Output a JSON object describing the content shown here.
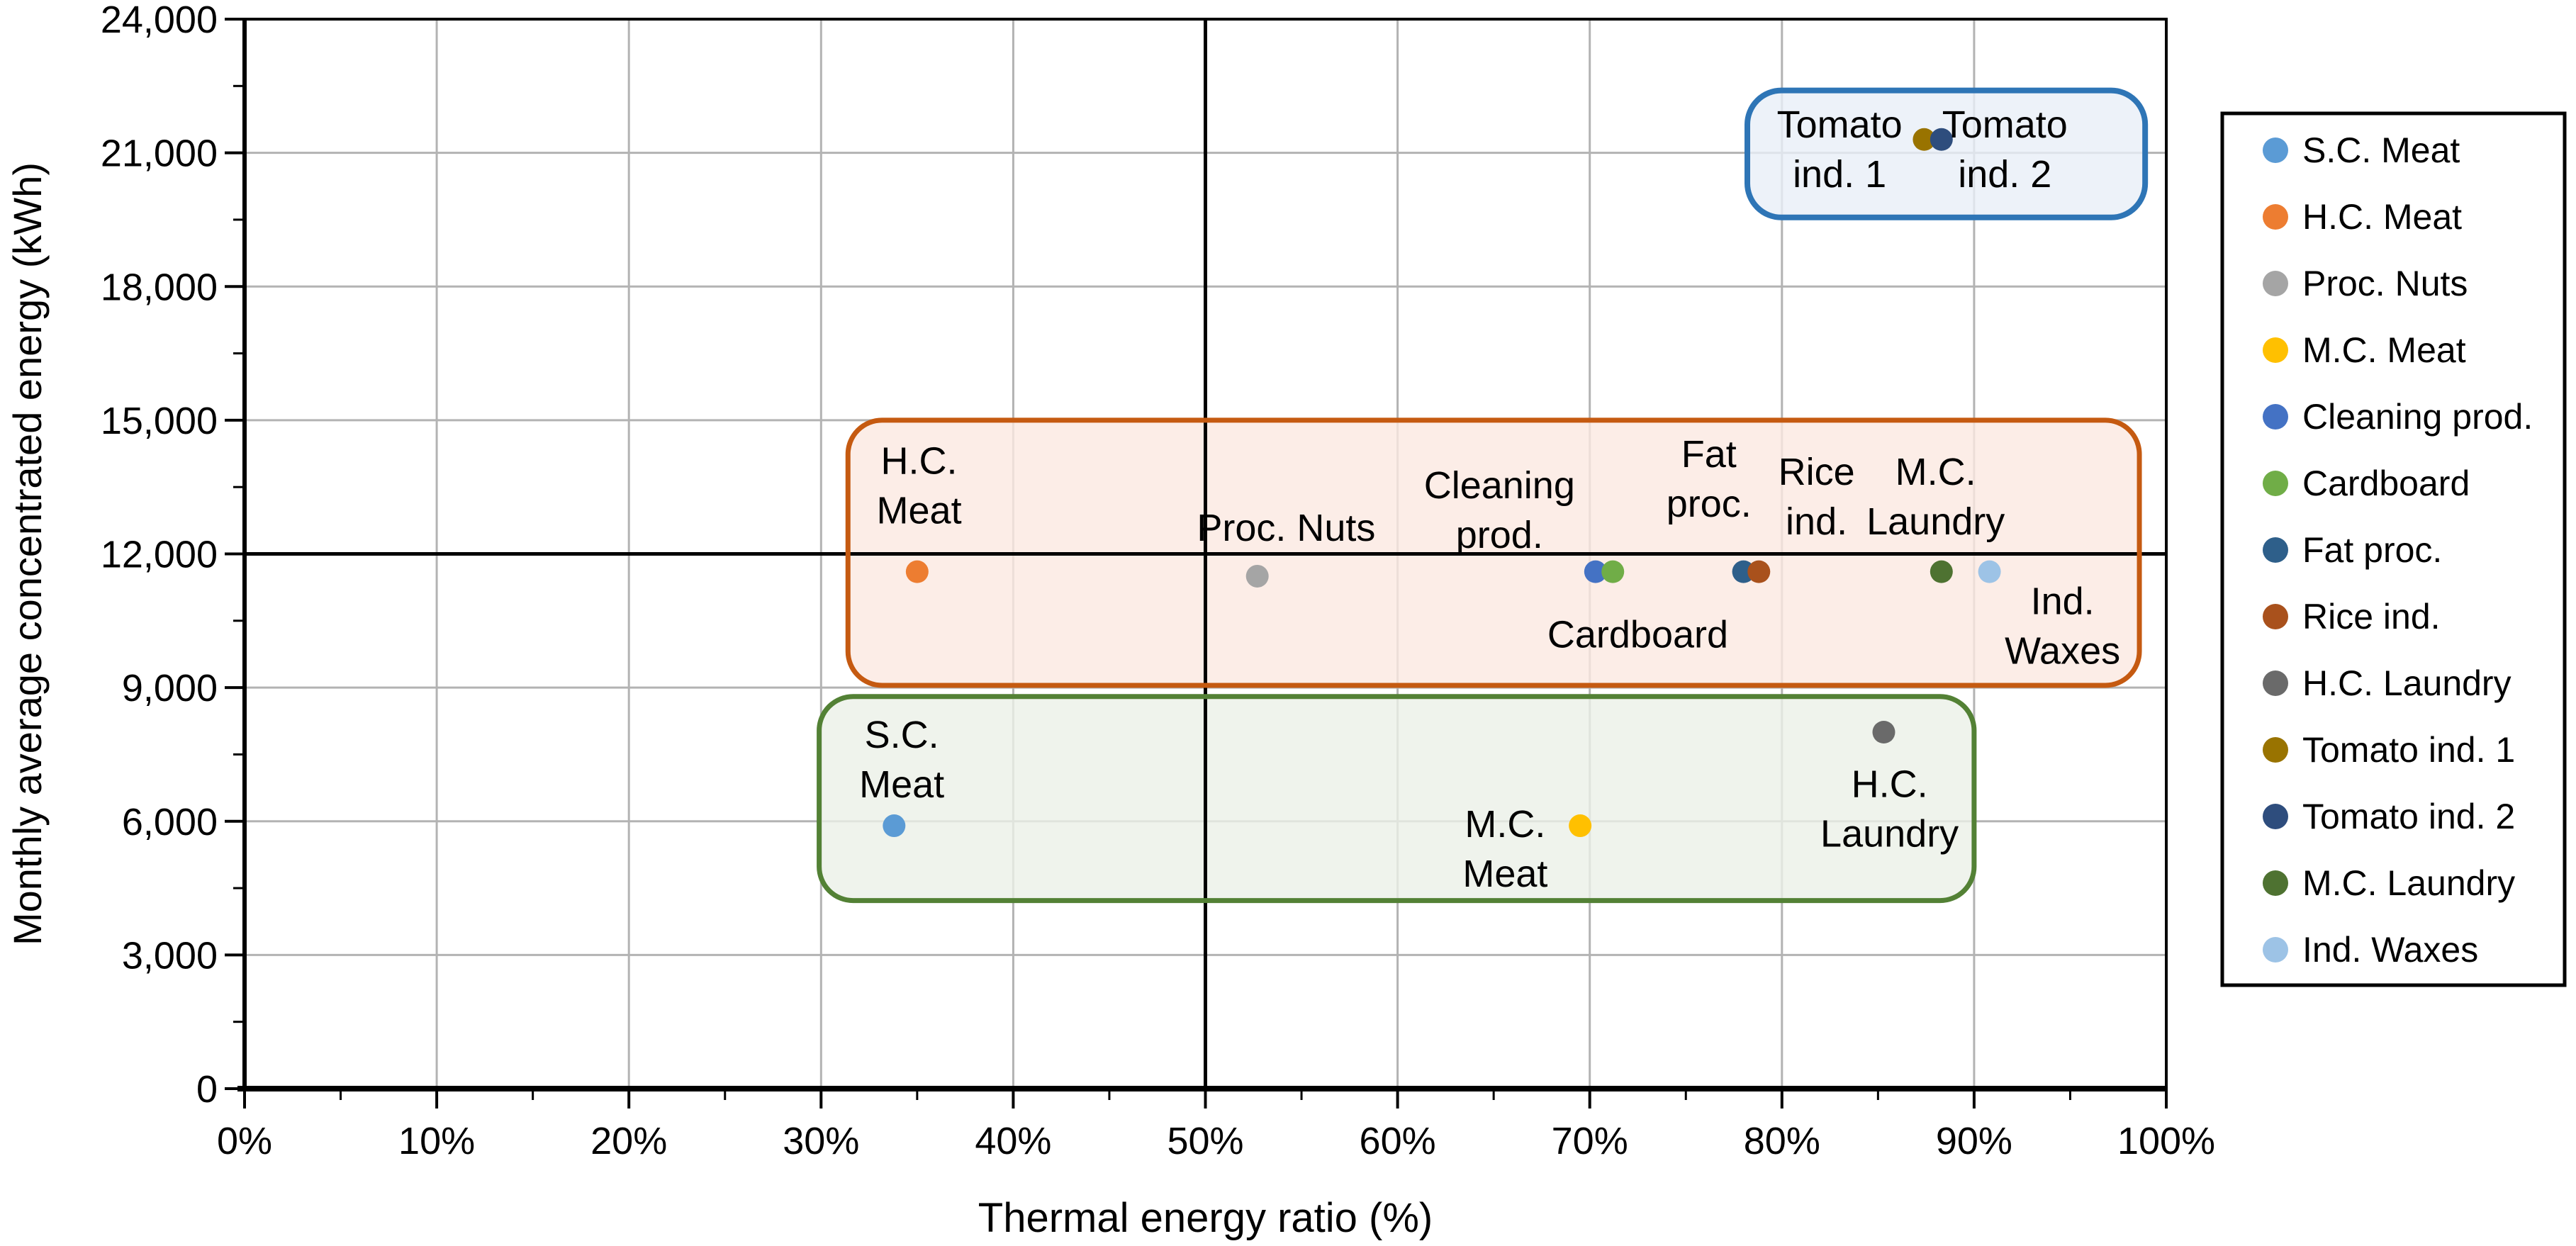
{
  "chart_data": {
    "type": "scatter",
    "title": "",
    "xlabel": "Thermal energy ratio (%)",
    "ylabel": "Monthly average concentrated energy (kWh)",
    "xlim": [
      0,
      100
    ],
    "ylim": [
      0,
      24000
    ],
    "x_major_step": 10,
    "x_minor_step": 5,
    "y_major_step": 3000,
    "y_minor_step": 1500,
    "grid_on": true,
    "grid_color": "#B3B3B3",
    "x_tick_labels": [
      "0%",
      "10%",
      "20%",
      "30%",
      "40%",
      "50%",
      "60%",
      "70%",
      "80%",
      "90%",
      "100%"
    ],
    "y_tick_labels": [
      "0",
      "3,000",
      "6,000",
      "9,000",
      "12,000",
      "15,000",
      "18,000",
      "21,000",
      "24,000"
    ],
    "reference_lines": {
      "x": 50,
      "y": 12000,
      "color": "#000000"
    },
    "series": [
      {
        "name": "S.C. Meat",
        "x": 33.8,
        "y": 5900,
        "color": "#5B9BD5"
      },
      {
        "name": "H.C. Meat",
        "x": 35.0,
        "y": 11600,
        "color": "#ED7D31"
      },
      {
        "name": "Proc. Nuts",
        "x": 52.7,
        "y": 11500,
        "color": "#A5A5A5"
      },
      {
        "name": "M.C. Meat",
        "x": 69.5,
        "y": 5900,
        "color": "#FFC000"
      },
      {
        "name": "Cleaning prod.",
        "x": 70.3,
        "y": 11600,
        "color": "#4472C4"
      },
      {
        "name": "Cardboard",
        "x": 71.2,
        "y": 11600,
        "color": "#70AD47"
      },
      {
        "name": "Fat proc.",
        "x": 78.0,
        "y": 11600,
        "color": "#2E5F8A"
      },
      {
        "name": "Rice ind.",
        "x": 78.8,
        "y": 11600,
        "color": "#A9511C"
      },
      {
        "name": "H.C. Laundry",
        "x": 85.3,
        "y": 8000,
        "color": "#6A6A6A"
      },
      {
        "name": "Tomato ind. 1",
        "x": 87.4,
        "y": 21300,
        "color": "#997300"
      },
      {
        "name": "Tomato ind. 2",
        "x": 88.3,
        "y": 21300,
        "color": "#2E4D7D"
      },
      {
        "name": "M.C. Laundry",
        "x": 88.3,
        "y": 11600,
        "color": "#4E7231"
      },
      {
        "name": "Ind. Waxes",
        "x": 90.8,
        "y": 11600,
        "color": "#9DC3E6"
      }
    ],
    "group_boxes": [
      {
        "name": "tomato-group",
        "x1": 78.2,
        "x2": 98.9,
        "y1": 19550,
        "y2": 22400,
        "stroke": "#2E75B6",
        "stroke_width": 8,
        "fill": "#E9EFF8",
        "fill_opacity": 0.8
      },
      {
        "name": "upper-group",
        "x1": 31.4,
        "x2": 98.6,
        "y1": 9050,
        "y2": 15000,
        "stroke": "#C55A11",
        "stroke_width": 7,
        "fill": "#FBE9E1",
        "fill_opacity": 0.8
      },
      {
        "name": "lower-group",
        "x1": 29.9,
        "x2": 90.0,
        "y1": 4220,
        "y2": 8800,
        "stroke": "#538135",
        "stroke_width": 7,
        "fill": "#EBF0E7",
        "fill_opacity": 0.8
      }
    ],
    "annotations": [
      {
        "lines": [
          "H.C.",
          "Meat"
        ],
        "x": 35.1,
        "y": 14100
      },
      {
        "lines": [
          "Proc. Nuts"
        ],
        "x": 54.2,
        "y": 12600
      },
      {
        "lines": [
          "Cleaning",
          "prod."
        ],
        "x": 65.3,
        "y": 13550
      },
      {
        "lines": [
          "Fat",
          "proc."
        ],
        "x": 76.2,
        "y": 14250
      },
      {
        "lines": [
          "Rice",
          "ind."
        ],
        "x": 81.8,
        "y": 13850
      },
      {
        "lines": [
          "M.C.",
          "Laundry"
        ],
        "x": 88.0,
        "y": 13850
      },
      {
        "lines": [
          "Cardboard"
        ],
        "x": 72.5,
        "y": 10200
      },
      {
        "lines": [
          "Ind.",
          "Waxes"
        ],
        "x": 94.6,
        "y": 10950
      },
      {
        "lines": [
          "S.C.",
          "Meat"
        ],
        "x": 34.2,
        "y": 7950
      },
      {
        "lines": [
          "M.C.",
          "Meat"
        ],
        "x": 65.6,
        "y": 5950
      },
      {
        "lines": [
          "H.C.",
          "Laundry"
        ],
        "x": 85.6,
        "y": 6850
      },
      {
        "lines": [
          "Tomato",
          "ind. 1"
        ],
        "x": 83.0,
        "y": 21650
      },
      {
        "lines": [
          "Tomato",
          "ind. 2"
        ],
        "x": 91.6,
        "y": 21650
      }
    ],
    "legend": {
      "position": "right",
      "entries": [
        {
          "label": "S.C. Meat",
          "color": "#5B9BD5"
        },
        {
          "label": "H.C. Meat",
          "color": "#ED7D31"
        },
        {
          "label": "Proc. Nuts",
          "color": "#A5A5A5"
        },
        {
          "label": "M.C. Meat",
          "color": "#FFC000"
        },
        {
          "label": "Cleaning prod.",
          "color": "#4472C4"
        },
        {
          "label": "Cardboard",
          "color": "#70AD47"
        },
        {
          "label": "Fat proc.",
          "color": "#2E5F8A"
        },
        {
          "label": "Rice ind.",
          "color": "#A9511C"
        },
        {
          "label": "H.C. Laundry",
          "color": "#6A6A6A"
        },
        {
          "label": "Tomato ind. 1",
          "color": "#997300"
        },
        {
          "label": "Tomato ind. 2",
          "color": "#2E4D7D"
        },
        {
          "label": "M.C. Laundry",
          "color": "#4E7231"
        },
        {
          "label": "Ind. Waxes",
          "color": "#9DC3E6"
        }
      ]
    }
  }
}
